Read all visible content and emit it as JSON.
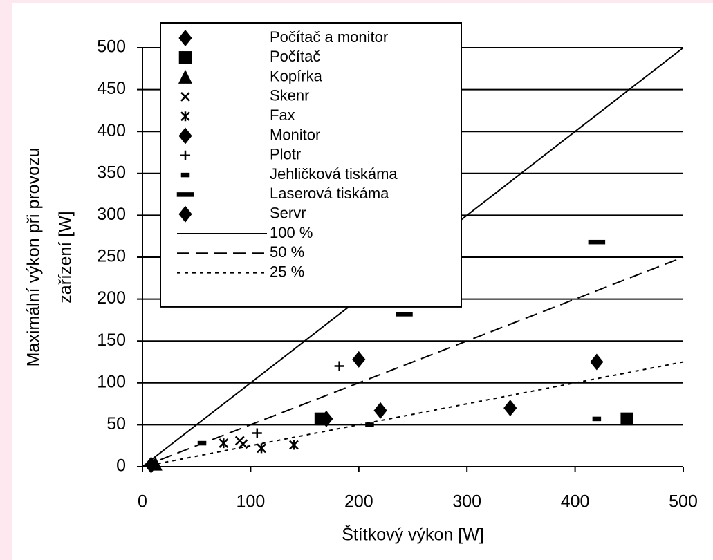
{
  "chart_data": {
    "type": "scatter",
    "x_label": "Štítkový výkon [W]",
    "y_label": [
      "Maximální výkon při provozu",
      "zařízení [W]"
    ],
    "xlim": [
      0,
      500
    ],
    "ylim": [
      0,
      500
    ],
    "xticks": [
      0,
      100,
      200,
      300,
      400,
      500
    ],
    "yticks": [
      0,
      50,
      100,
      150,
      200,
      250,
      300,
      350,
      400,
      450,
      500
    ],
    "grid": true,
    "legend": "top-left",
    "series": [
      {
        "name": "Počítač a monitor",
        "marker": "diamond",
        "color": "#000000",
        "x": [
          8,
          170
        ],
        "values": [
          2,
          57
        ]
      },
      {
        "name": "Počítač",
        "marker": "square",
        "color": "#000000",
        "x": [
          165,
          448
        ],
        "values": [
          57,
          57
        ]
      },
      {
        "name": "Kopírka",
        "marker": "triangle",
        "color": "#000000",
        "x": [
          12
        ],
        "values": [
          3
        ]
      },
      {
        "name": "Skenr",
        "marker": "cross",
        "color": "#000000",
        "x": [
          90,
          93
        ],
        "values": [
          31,
          27
        ]
      },
      {
        "name": "Fax",
        "marker": "star",
        "color": "#000000",
        "x": [
          75,
          110,
          140
        ],
        "values": [
          28,
          22,
          26
        ]
      },
      {
        "name": "Monitor",
        "marker": "diamond",
        "color": "#000000",
        "x": [
          220,
          340
        ],
        "values": [
          67,
          70
        ]
      },
      {
        "name": "Plotr",
        "marker": "plus",
        "color": "#000000",
        "x": [
          182,
          106
        ],
        "values": [
          120,
          40
        ]
      },
      {
        "name": "Jehličková tiskáma",
        "marker": "dash",
        "color": "#000000",
        "x": [
          55,
          420,
          210
        ],
        "values": [
          28,
          57,
          50
        ]
      },
      {
        "name": "Laserová tiskáma",
        "marker": "bar",
        "color": "#000000",
        "x": [
          420,
          242
        ],
        "values": [
          268,
          182
        ]
      },
      {
        "name": "Servr",
        "marker": "diamond",
        "color": "#000000",
        "x": [
          200,
          420
        ],
        "values": [
          128,
          125
        ]
      }
    ],
    "lines": [
      {
        "name": "100 %",
        "dash": "solid",
        "color": "#000000",
        "x": [
          0,
          500
        ],
        "values": [
          0,
          500
        ]
      },
      {
        "name": "50 %",
        "dash": "dashed",
        "color": "#000000",
        "x": [
          0,
          500
        ],
        "values": [
          0,
          250
        ]
      },
      {
        "name": "25 %",
        "dash": "dotted",
        "color": "#000000",
        "x": [
          0,
          500
        ],
        "values": [
          0,
          125
        ]
      }
    ]
  }
}
